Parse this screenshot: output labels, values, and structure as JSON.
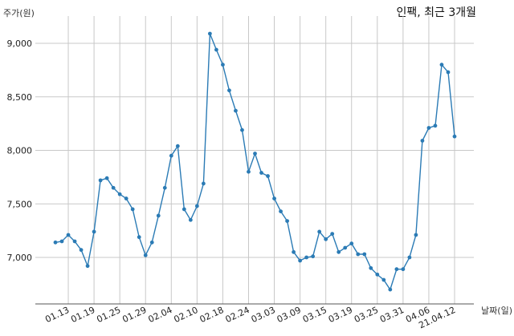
{
  "chart_data": {
    "type": "line",
    "title": "인팩, 최근 3개월",
    "ylabel": "주가(원)",
    "xlabel": "날짜(일)",
    "ylim": [
      6550,
      9200
    ],
    "yticks": [
      7000,
      7500,
      8000,
      8500,
      9000
    ],
    "ytick_labels": [
      "7,000",
      "7,500",
      "8,000",
      "8,500",
      "9,000"
    ],
    "xtick_labels": [
      "01.13",
      "01.19",
      "01.25",
      "01.29",
      "02.04",
      "02.10",
      "02.18",
      "02.24",
      "03.03",
      "03.09",
      "03.15",
      "03.19",
      "03.25",
      "03.31",
      "04.06",
      "21.04.12"
    ],
    "xtick_index": [
      2,
      6,
      10,
      14,
      18,
      22,
      26,
      30,
      34,
      38,
      42,
      46,
      50,
      54,
      58,
      62
    ],
    "grid": true,
    "series": [
      {
        "color": "#2b7bb5",
        "values": [
          7140,
          7150,
          7210,
          7150,
          7070,
          6920,
          7240,
          7720,
          7740,
          7650,
          7590,
          7550,
          7450,
          7190,
          7020,
          7140,
          7390,
          7650,
          7950,
          8040,
          7450,
          7350,
          7480,
          7690,
          9090,
          8940,
          8800,
          8560,
          8370,
          8190,
          7800,
          7970,
          7790,
          7760,
          7550,
          7430,
          7340,
          7050,
          6970,
          7000,
          7010,
          7240,
          7170,
          7220,
          7050,
          7090,
          7130,
          7030,
          7030,
          6900,
          6840,
          6790,
          6700,
          6890,
          6890,
          7000,
          7210,
          8090,
          8210,
          8230,
          8800,
          8730,
          8130
        ]
      }
    ]
  }
}
